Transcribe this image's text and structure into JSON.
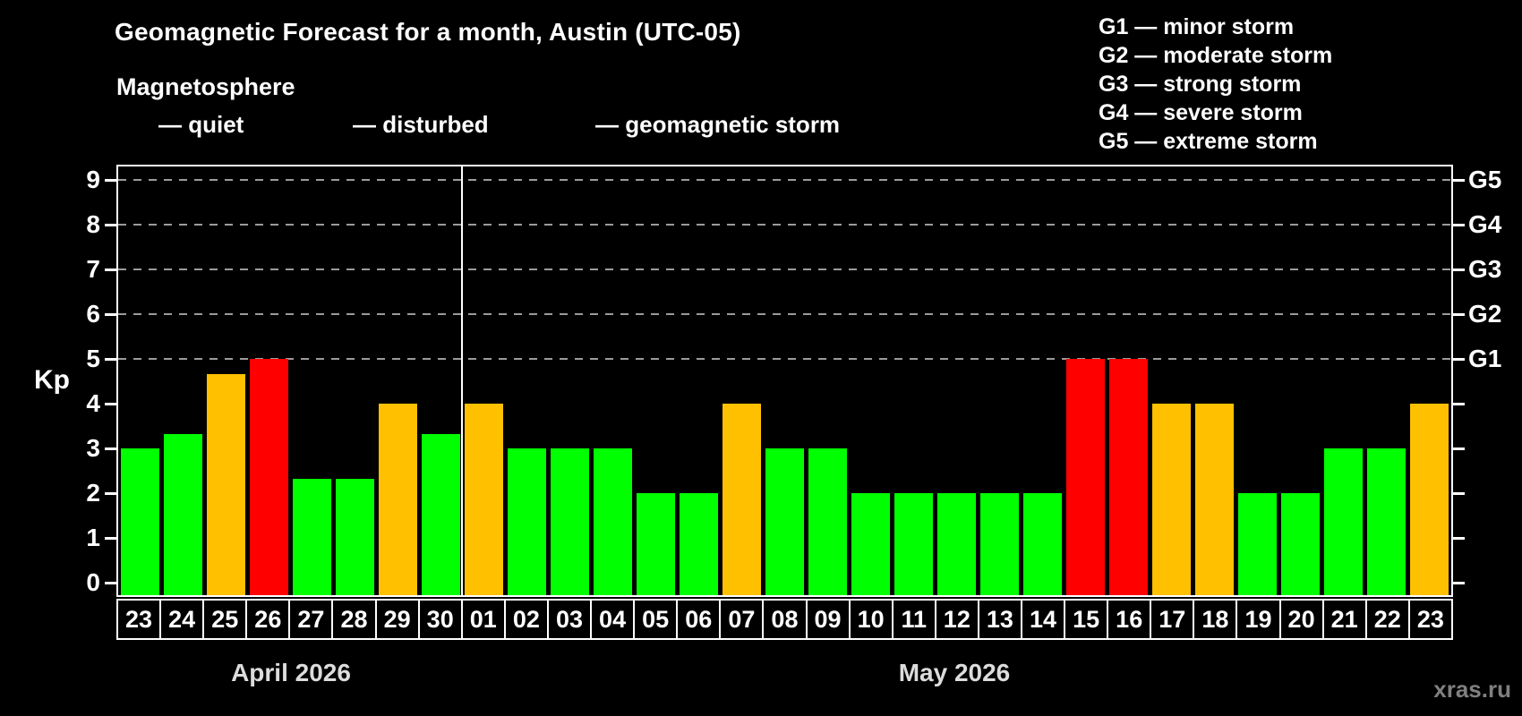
{
  "title": "Geomagnetic Forecast for a month, Austin (UTC-05)",
  "subtitle": "Magnetosphere",
  "watermark": "xras.ru",
  "colors": {
    "quiet": "#00ff00",
    "disturbed": "#ffc000",
    "storm": "#ff0000",
    "background": "#000000",
    "grid": "#9b9b9b",
    "frame": "#ffffff"
  },
  "legend": {
    "items": [
      {
        "key": "quiet",
        "label": "— quiet"
      },
      {
        "key": "disturbed",
        "label": "— disturbed"
      },
      {
        "key": "storm",
        "label": "— geomagnetic storm"
      }
    ]
  },
  "storm_scale_legend": [
    "G1 — minor storm",
    "G2 — moderate storm",
    "G3 — strong storm",
    "G4 — severe storm",
    "G5 — extreme storm"
  ],
  "chart_data": {
    "type": "bar",
    "title": "Geomagnetic Forecast for a month, Austin (UTC-05)",
    "xlabel": "",
    "ylabel": "Kp",
    "ylim": [
      0,
      9
    ],
    "grid": "dashed horizontal at Kp 5-9",
    "legend_position": "top",
    "left_axis_ticks": [
      0,
      1,
      2,
      3,
      4,
      5,
      6,
      7,
      8,
      9
    ],
    "right_axis_ticks": [
      {
        "kp": 5,
        "label": "G1"
      },
      {
        "kp": 6,
        "label": "G2"
      },
      {
        "kp": 7,
        "label": "G3"
      },
      {
        "kp": 8,
        "label": "G4"
      },
      {
        "kp": 9,
        "label": "G5"
      }
    ],
    "gridlines_kp": [
      5,
      6,
      7,
      8,
      9
    ],
    "months": [
      {
        "label": "April 2026",
        "days_count": 8
      },
      {
        "label": "May 2026",
        "days_count": 23
      }
    ],
    "categories": [
      "23",
      "24",
      "25",
      "26",
      "27",
      "28",
      "29",
      "30",
      "01",
      "02",
      "03",
      "04",
      "05",
      "06",
      "07",
      "08",
      "09",
      "10",
      "11",
      "12",
      "13",
      "14",
      "15",
      "16",
      "17",
      "18",
      "19",
      "20",
      "21",
      "22",
      "23"
    ],
    "bars": [
      {
        "day": "23",
        "month": "April 2026",
        "value": 3.0,
        "status": "quiet"
      },
      {
        "day": "24",
        "month": "April 2026",
        "value": 3.33,
        "status": "quiet"
      },
      {
        "day": "25",
        "month": "April 2026",
        "value": 4.67,
        "status": "disturbed"
      },
      {
        "day": "26",
        "month": "April 2026",
        "value": 5.0,
        "status": "storm"
      },
      {
        "day": "27",
        "month": "April 2026",
        "value": 2.33,
        "status": "quiet"
      },
      {
        "day": "28",
        "month": "April 2026",
        "value": 2.33,
        "status": "quiet"
      },
      {
        "day": "29",
        "month": "April 2026",
        "value": 4.0,
        "status": "disturbed"
      },
      {
        "day": "30",
        "month": "April 2026",
        "value": 3.33,
        "status": "quiet"
      },
      {
        "day": "01",
        "month": "May 2026",
        "value": 4.0,
        "status": "disturbed"
      },
      {
        "day": "02",
        "month": "May 2026",
        "value": 3.0,
        "status": "quiet"
      },
      {
        "day": "03",
        "month": "May 2026",
        "value": 3.0,
        "status": "quiet"
      },
      {
        "day": "04",
        "month": "May 2026",
        "value": 3.0,
        "status": "quiet"
      },
      {
        "day": "05",
        "month": "May 2026",
        "value": 2.0,
        "status": "quiet"
      },
      {
        "day": "06",
        "month": "May 2026",
        "value": 2.0,
        "status": "quiet"
      },
      {
        "day": "07",
        "month": "May 2026",
        "value": 4.0,
        "status": "disturbed"
      },
      {
        "day": "08",
        "month": "May 2026",
        "value": 3.0,
        "status": "quiet"
      },
      {
        "day": "09",
        "month": "May 2026",
        "value": 3.0,
        "status": "quiet"
      },
      {
        "day": "10",
        "month": "May 2026",
        "value": 2.0,
        "status": "quiet"
      },
      {
        "day": "11",
        "month": "May 2026",
        "value": 2.0,
        "status": "quiet"
      },
      {
        "day": "12",
        "month": "May 2026",
        "value": 2.0,
        "status": "quiet"
      },
      {
        "day": "13",
        "month": "May 2026",
        "value": 2.0,
        "status": "quiet"
      },
      {
        "day": "14",
        "month": "May 2026",
        "value": 2.0,
        "status": "quiet"
      },
      {
        "day": "15",
        "month": "May 2026",
        "value": 5.0,
        "status": "storm"
      },
      {
        "day": "16",
        "month": "May 2026",
        "value": 5.0,
        "status": "storm"
      },
      {
        "day": "17",
        "month": "May 2026",
        "value": 4.0,
        "status": "disturbed"
      },
      {
        "day": "18",
        "month": "May 2026",
        "value": 4.0,
        "status": "disturbed"
      },
      {
        "day": "19",
        "month": "May 2026",
        "value": 2.0,
        "status": "quiet"
      },
      {
        "day": "20",
        "month": "May 2026",
        "value": 2.0,
        "status": "quiet"
      },
      {
        "day": "21",
        "month": "May 2026",
        "value": 3.0,
        "status": "quiet"
      },
      {
        "day": "22",
        "month": "May 2026",
        "value": 3.0,
        "status": "quiet"
      },
      {
        "day": "23",
        "month": "May 2026",
        "value": 4.0,
        "status": "disturbed"
      }
    ]
  }
}
